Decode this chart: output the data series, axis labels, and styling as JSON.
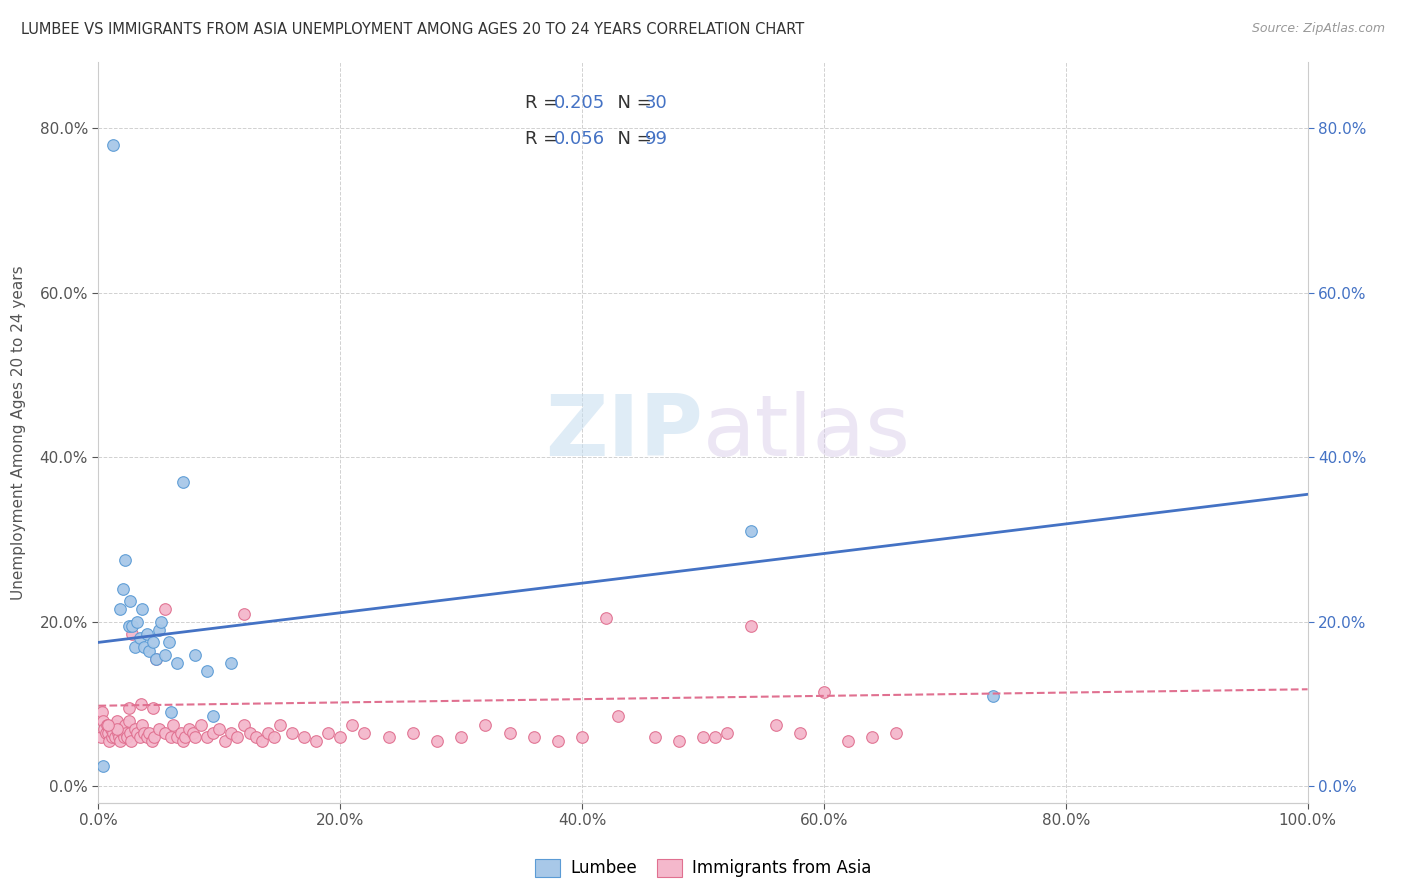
{
  "title": "LUMBEE VS IMMIGRANTS FROM ASIA UNEMPLOYMENT AMONG AGES 20 TO 24 YEARS CORRELATION CHART",
  "source": "Source: ZipAtlas.com",
  "ylabel": "Unemployment Among Ages 20 to 24 years",
  "xlim": [
    0,
    1.0
  ],
  "ylim": [
    -0.02,
    0.88
  ],
  "lumbee_color": "#a8c8e8",
  "lumbee_edge_color": "#5b9bd5",
  "asia_color": "#f4b8cc",
  "asia_edge_color": "#e07090",
  "line_blue": "#4472c4",
  "line_pink": "#e07090",
  "legend_R1": "R = 0.205",
  "legend_N1": "N = 30",
  "legend_R2": "R = 0.056",
  "legend_N2": "N = 99",
  "watermark_zip": "ZIP",
  "watermark_atlas": "atlas",
  "blue_line_x0": 0.0,
  "blue_line_y0": 0.175,
  "blue_line_x1": 1.0,
  "blue_line_y1": 0.355,
  "pink_line_x0": 0.0,
  "pink_line_y0": 0.098,
  "pink_line_x1": 1.0,
  "pink_line_y1": 0.118,
  "lumbee_x": [
    0.004,
    0.012,
    0.018,
    0.02,
    0.022,
    0.025,
    0.026,
    0.028,
    0.03,
    0.032,
    0.034,
    0.036,
    0.038,
    0.04,
    0.042,
    0.045,
    0.048,
    0.05,
    0.052,
    0.055,
    0.058,
    0.06,
    0.065,
    0.07,
    0.08,
    0.09,
    0.095,
    0.11,
    0.54,
    0.74
  ],
  "lumbee_y": [
    0.025,
    0.78,
    0.215,
    0.24,
    0.275,
    0.195,
    0.225,
    0.195,
    0.17,
    0.2,
    0.18,
    0.215,
    0.17,
    0.185,
    0.165,
    0.175,
    0.155,
    0.19,
    0.2,
    0.16,
    0.175,
    0.09,
    0.15,
    0.37,
    0.16,
    0.14,
    0.085,
    0.15,
    0.31,
    0.11
  ],
  "asia_x": [
    0.002,
    0.003,
    0.004,
    0.005,
    0.006,
    0.007,
    0.008,
    0.009,
    0.01,
    0.011,
    0.012,
    0.013,
    0.014,
    0.015,
    0.016,
    0.017,
    0.018,
    0.019,
    0.02,
    0.021,
    0.022,
    0.023,
    0.024,
    0.025,
    0.026,
    0.027,
    0.028,
    0.03,
    0.032,
    0.034,
    0.036,
    0.038,
    0.04,
    0.042,
    0.044,
    0.046,
    0.048,
    0.05,
    0.055,
    0.06,
    0.062,
    0.065,
    0.068,
    0.07,
    0.072,
    0.075,
    0.078,
    0.08,
    0.085,
    0.09,
    0.095,
    0.1,
    0.105,
    0.11,
    0.115,
    0.12,
    0.125,
    0.13,
    0.135,
    0.14,
    0.145,
    0.15,
    0.16,
    0.17,
    0.18,
    0.19,
    0.2,
    0.21,
    0.22,
    0.24,
    0.26,
    0.28,
    0.3,
    0.32,
    0.34,
    0.36,
    0.38,
    0.4,
    0.42,
    0.46,
    0.48,
    0.5,
    0.52,
    0.54,
    0.56,
    0.58,
    0.6,
    0.62,
    0.64,
    0.66,
    0.12,
    0.045,
    0.43,
    0.51,
    0.055,
    0.035,
    0.025,
    0.015,
    0.008
  ],
  "asia_y": [
    0.06,
    0.09,
    0.08,
    0.07,
    0.065,
    0.075,
    0.065,
    0.055,
    0.07,
    0.06,
    0.065,
    0.075,
    0.06,
    0.08,
    0.065,
    0.06,
    0.055,
    0.07,
    0.065,
    0.06,
    0.075,
    0.065,
    0.06,
    0.08,
    0.065,
    0.055,
    0.185,
    0.07,
    0.065,
    0.06,
    0.075,
    0.065,
    0.06,
    0.065,
    0.055,
    0.06,
    0.155,
    0.07,
    0.065,
    0.06,
    0.075,
    0.06,
    0.065,
    0.055,
    0.06,
    0.07,
    0.065,
    0.06,
    0.075,
    0.06,
    0.065,
    0.07,
    0.055,
    0.065,
    0.06,
    0.075,
    0.065,
    0.06,
    0.055,
    0.065,
    0.06,
    0.075,
    0.065,
    0.06,
    0.055,
    0.065,
    0.06,
    0.075,
    0.065,
    0.06,
    0.065,
    0.055,
    0.06,
    0.075,
    0.065,
    0.06,
    0.055,
    0.06,
    0.205,
    0.06,
    0.055,
    0.06,
    0.065,
    0.195,
    0.075,
    0.065,
    0.115,
    0.055,
    0.06,
    0.065,
    0.21,
    0.095,
    0.085,
    0.06,
    0.215,
    0.1,
    0.095,
    0.07,
    0.075
  ]
}
